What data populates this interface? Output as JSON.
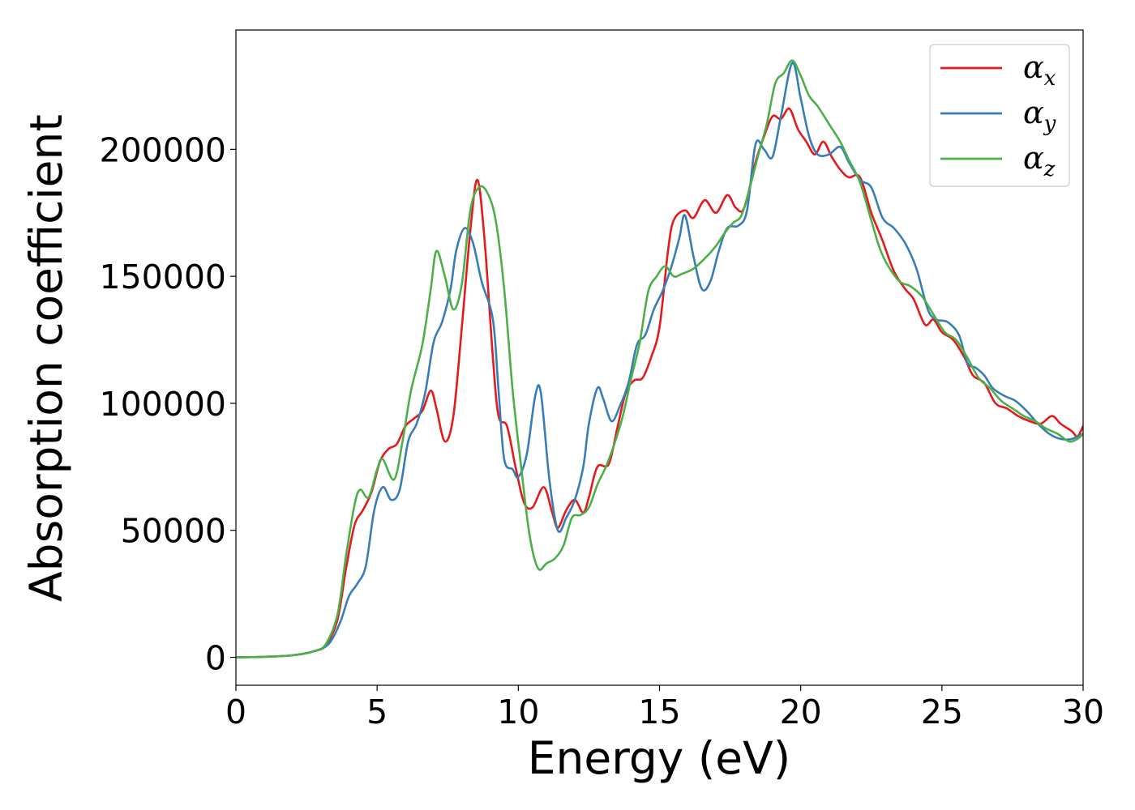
{
  "chart_data": {
    "type": "line",
    "title": "",
    "xlabel": "Energy (eV)",
    "ylabel": "Absorption coefficient",
    "xlim": [
      0,
      30
    ],
    "ylim": [
      -11000,
      247000
    ],
    "xticks": [
      0,
      5,
      10,
      15,
      20,
      25,
      30
    ],
    "xtick_labels": [
      "0",
      "5",
      "10",
      "15",
      "20",
      "25",
      "30"
    ],
    "yticks": [
      0,
      50000,
      100000,
      150000,
      200000
    ],
    "ytick_labels": [
      "0",
      "50000",
      "100000",
      "150000",
      "200000"
    ],
    "grid": false,
    "legend_position": "top-right",
    "series": [
      {
        "name": "α_x",
        "label_main": "α",
        "label_sub": "x",
        "color": "#e41a1c",
        "points": [
          [
            0,
            0
          ],
          [
            1,
            200
          ],
          [
            2,
            800
          ],
          [
            2.8,
            2500
          ],
          [
            3.2,
            5000
          ],
          [
            3.6,
            15000
          ],
          [
            3.9,
            35000
          ],
          [
            4.2,
            52000
          ],
          [
            4.5,
            58000
          ],
          [
            4.8,
            65000
          ],
          [
            5.1,
            77000
          ],
          [
            5.4,
            82000
          ],
          [
            5.7,
            84000
          ],
          [
            6.0,
            91000
          ],
          [
            6.3,
            94000
          ],
          [
            6.6,
            97000
          ],
          [
            6.9,
            105000
          ],
          [
            7.1,
            98000
          ],
          [
            7.4,
            85000
          ],
          [
            7.7,
            95000
          ],
          [
            8.0,
            130000
          ],
          [
            8.3,
            168000
          ],
          [
            8.55,
            188000
          ],
          [
            8.8,
            165000
          ],
          [
            9.1,
            118000
          ],
          [
            9.3,
            95000
          ],
          [
            9.6,
            91000
          ],
          [
            9.9,
            75000
          ],
          [
            10.2,
            61000
          ],
          [
            10.5,
            59000
          ],
          [
            10.9,
            67000
          ],
          [
            11.2,
            57000
          ],
          [
            11.4,
            51000
          ],
          [
            11.7,
            58000
          ],
          [
            12.0,
            62000
          ],
          [
            12.3,
            57000
          ],
          [
            12.5,
            63000
          ],
          [
            12.8,
            75000
          ],
          [
            13.2,
            76000
          ],
          [
            13.5,
            90000
          ],
          [
            13.8,
            104000
          ],
          [
            14.1,
            109000
          ],
          [
            14.4,
            110000
          ],
          [
            14.7,
            118000
          ],
          [
            15.0,
            130000
          ],
          [
            15.3,
            160000
          ],
          [
            15.5,
            172000
          ],
          [
            15.9,
            176000
          ],
          [
            16.2,
            173000
          ],
          [
            16.6,
            180000
          ],
          [
            17.0,
            175000
          ],
          [
            17.4,
            182000
          ],
          [
            17.7,
            177000
          ],
          [
            18.0,
            177000
          ],
          [
            18.4,
            195000
          ],
          [
            18.7,
            205000
          ],
          [
            19.0,
            213000
          ],
          [
            19.3,
            212000
          ],
          [
            19.6,
            216000
          ],
          [
            19.9,
            208000
          ],
          [
            20.2,
            203000
          ],
          [
            20.5,
            198000
          ],
          [
            20.8,
            203000
          ],
          [
            21.1,
            197000
          ],
          [
            21.4,
            192000
          ],
          [
            21.7,
            189000
          ],
          [
            22.1,
            189000
          ],
          [
            22.5,
            175000
          ],
          [
            22.9,
            164000
          ],
          [
            23.3,
            152000
          ],
          [
            23.7,
            145000
          ],
          [
            24.0,
            141000
          ],
          [
            24.4,
            131000
          ],
          [
            24.7,
            133000
          ],
          [
            25.0,
            128000
          ],
          [
            25.4,
            125000
          ],
          [
            25.8,
            118000
          ],
          [
            26.1,
            111000
          ],
          [
            26.5,
            108000
          ],
          [
            26.9,
            100000
          ],
          [
            27.3,
            98000
          ],
          [
            27.7,
            95000
          ],
          [
            28.1,
            93000
          ],
          [
            28.5,
            92000
          ],
          [
            28.9,
            95000
          ],
          [
            29.2,
            92000
          ],
          [
            29.6,
            89000
          ],
          [
            29.8,
            87000
          ],
          [
            30.0,
            91000
          ]
        ]
      },
      {
        "name": "α_y",
        "label_main": "α",
        "label_sub": "y",
        "color": "#377eb8",
        "points": [
          [
            0,
            0
          ],
          [
            1,
            200
          ],
          [
            2,
            800
          ],
          [
            2.8,
            2500
          ],
          [
            3.3,
            5500
          ],
          [
            3.7,
            14000
          ],
          [
            4.0,
            24000
          ],
          [
            4.3,
            29000
          ],
          [
            4.6,
            36000
          ],
          [
            4.9,
            58000
          ],
          [
            5.2,
            67000
          ],
          [
            5.5,
            62000
          ],
          [
            5.8,
            66000
          ],
          [
            6.1,
            85000
          ],
          [
            6.4,
            92000
          ],
          [
            6.7,
            104000
          ],
          [
            7.0,
            124000
          ],
          [
            7.3,
            132000
          ],
          [
            7.6,
            145000
          ],
          [
            7.8,
            160000
          ],
          [
            8.1,
            169000
          ],
          [
            8.4,
            163000
          ],
          [
            8.7,
            148000
          ],
          [
            9.1,
            133000
          ],
          [
            9.3,
            105000
          ],
          [
            9.5,
            78000
          ],
          [
            9.8,
            74000
          ],
          [
            10.0,
            71000
          ],
          [
            10.3,
            80000
          ],
          [
            10.6,
            103000
          ],
          [
            10.8,
            104000
          ],
          [
            11.1,
            70000
          ],
          [
            11.4,
            50000
          ],
          [
            11.7,
            55000
          ],
          [
            12.0,
            62000
          ],
          [
            12.3,
            75000
          ],
          [
            12.5,
            92000
          ],
          [
            12.8,
            106000
          ],
          [
            13.0,
            102000
          ],
          [
            13.3,
            93000
          ],
          [
            13.6,
            99000
          ],
          [
            13.9,
            108000
          ],
          [
            14.2,
            123000
          ],
          [
            14.5,
            127000
          ],
          [
            14.8,
            137000
          ],
          [
            15.1,
            144000
          ],
          [
            15.4,
            153000
          ],
          [
            15.7,
            165000
          ],
          [
            15.9,
            174000
          ],
          [
            16.2,
            158000
          ],
          [
            16.5,
            145000
          ],
          [
            16.8,
            148000
          ],
          [
            17.1,
            160000
          ],
          [
            17.4,
            169000
          ],
          [
            17.8,
            170000
          ],
          [
            18.1,
            176000
          ],
          [
            18.4,
            202000
          ],
          [
            18.7,
            200000
          ],
          [
            19.0,
            197000
          ],
          [
            19.3,
            213000
          ],
          [
            19.7,
            234000
          ],
          [
            20.0,
            220000
          ],
          [
            20.3,
            205000
          ],
          [
            20.6,
            198000
          ],
          [
            21.0,
            198000
          ],
          [
            21.4,
            201000
          ],
          [
            21.7,
            195000
          ],
          [
            22.1,
            188000
          ],
          [
            22.5,
            185000
          ],
          [
            22.9,
            173000
          ],
          [
            23.3,
            169000
          ],
          [
            23.7,
            163000
          ],
          [
            24.1,
            153000
          ],
          [
            24.5,
            137000
          ],
          [
            24.8,
            133000
          ],
          [
            25.2,
            132000
          ],
          [
            25.6,
            127000
          ],
          [
            25.9,
            116000
          ],
          [
            26.2,
            114000
          ],
          [
            26.5,
            111000
          ],
          [
            26.8,
            106000
          ],
          [
            27.2,
            103000
          ],
          [
            27.6,
            101000
          ],
          [
            28.0,
            97000
          ],
          [
            28.4,
            92000
          ],
          [
            28.8,
            88000
          ],
          [
            29.2,
            86000
          ],
          [
            29.6,
            86000
          ],
          [
            30.0,
            88000
          ]
        ]
      },
      {
        "name": "α_z",
        "label_main": "α",
        "label_sub": "z",
        "color": "#4daf4a",
        "points": [
          [
            0,
            0
          ],
          [
            1,
            200
          ],
          [
            2,
            800
          ],
          [
            2.8,
            2500
          ],
          [
            3.2,
            5500
          ],
          [
            3.6,
            17000
          ],
          [
            3.9,
            40000
          ],
          [
            4.2,
            60000
          ],
          [
            4.4,
            66000
          ],
          [
            4.7,
            63000
          ],
          [
            5.0,
            74000
          ],
          [
            5.2,
            78000
          ],
          [
            5.6,
            70000
          ],
          [
            5.9,
            85000
          ],
          [
            6.2,
            105000
          ],
          [
            6.6,
            123000
          ],
          [
            6.9,
            145000
          ],
          [
            7.1,
            160000
          ],
          [
            7.4,
            150000
          ],
          [
            7.7,
            137000
          ],
          [
            8.0,
            147000
          ],
          [
            8.3,
            176000
          ],
          [
            8.6,
            185000
          ],
          [
            8.9,
            183000
          ],
          [
            9.2,
            172000
          ],
          [
            9.5,
            145000
          ],
          [
            9.8,
            105000
          ],
          [
            10.1,
            75000
          ],
          [
            10.4,
            48000
          ],
          [
            10.7,
            35000
          ],
          [
            11.0,
            37000
          ],
          [
            11.3,
            39000
          ],
          [
            11.6,
            44000
          ],
          [
            11.9,
            55000
          ],
          [
            12.2,
            56000
          ],
          [
            12.5,
            59000
          ],
          [
            12.8,
            68000
          ],
          [
            13.1,
            75000
          ],
          [
            13.4,
            84000
          ],
          [
            13.7,
            95000
          ],
          [
            14.0,
            110000
          ],
          [
            14.3,
            124000
          ],
          [
            14.6,
            144000
          ],
          [
            14.9,
            150000
          ],
          [
            15.2,
            154000
          ],
          [
            15.5,
            150000
          ],
          [
            15.8,
            151000
          ],
          [
            16.2,
            153000
          ],
          [
            16.6,
            157000
          ],
          [
            17.0,
            162000
          ],
          [
            17.3,
            167000
          ],
          [
            17.6,
            171000
          ],
          [
            17.9,
            174000
          ],
          [
            18.2,
            185000
          ],
          [
            18.5,
            198000
          ],
          [
            18.8,
            210000
          ],
          [
            19.1,
            226000
          ],
          [
            19.4,
            230000
          ],
          [
            19.7,
            235000
          ],
          [
            20.0,
            229000
          ],
          [
            20.3,
            221000
          ],
          [
            20.6,
            217000
          ],
          [
            21.0,
            210000
          ],
          [
            21.4,
            203000
          ],
          [
            21.7,
            196000
          ],
          [
            22.1,
            187000
          ],
          [
            22.5,
            172000
          ],
          [
            22.8,
            161000
          ],
          [
            23.1,
            154000
          ],
          [
            23.5,
            148000
          ],
          [
            23.9,
            146000
          ],
          [
            24.3,
            142000
          ],
          [
            24.7,
            135000
          ],
          [
            25.1,
            128000
          ],
          [
            25.5,
            125000
          ],
          [
            25.9,
            118000
          ],
          [
            26.3,
            110000
          ],
          [
            26.7,
            106000
          ],
          [
            27.1,
            101000
          ],
          [
            27.5,
            98000
          ],
          [
            27.9,
            95000
          ],
          [
            28.3,
            93000
          ],
          [
            28.7,
            90000
          ],
          [
            29.1,
            88000
          ],
          [
            29.5,
            85000
          ],
          [
            29.8,
            86000
          ],
          [
            30.0,
            88000
          ]
        ]
      }
    ]
  }
}
